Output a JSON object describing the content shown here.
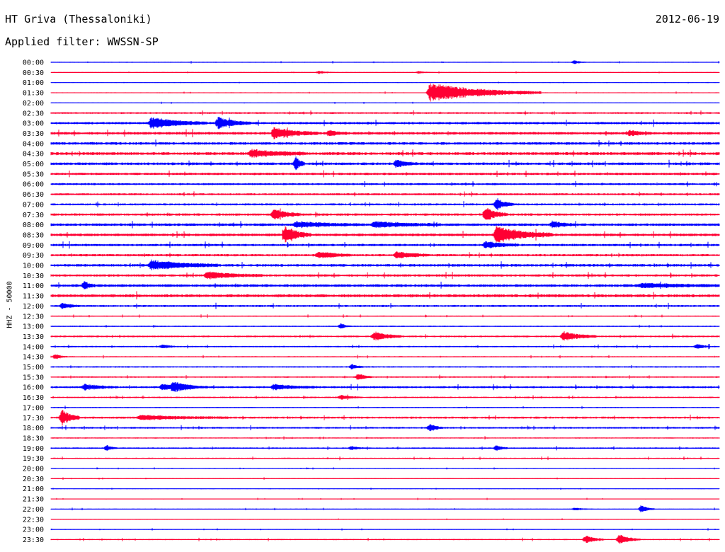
{
  "header": {
    "station": "HT Griva (Thessaloniki)",
    "date": "2012-06-19",
    "filter_label": "Applied filter:",
    "filter_value": "WWSSN-SP"
  },
  "channel_label": "HHZ - 50000",
  "colors": {
    "blue": "#0000ff",
    "red": "#ff0033",
    "text": "#000000",
    "background": "#ffffff"
  },
  "chart_data": {
    "type": "line",
    "title": "",
    "row_labels": [
      "00:00",
      "00:30",
      "01:00",
      "01:30",
      "02:00",
      "02:30",
      "03:00",
      "03:30",
      "04:00",
      "04:30",
      "05:00",
      "05:30",
      "06:00",
      "06:30",
      "07:00",
      "07:30",
      "08:00",
      "08:30",
      "09:00",
      "09:30",
      "10:00",
      "10:30",
      "11:00",
      "11:30",
      "12:00",
      "12:30",
      "13:00",
      "13:30",
      "14:00",
      "14:30",
      "15:00",
      "15:30",
      "16:00",
      "16:30",
      "17:00",
      "17:30",
      "18:00",
      "18:30",
      "19:00",
      "19:30",
      "20:00",
      "20:30",
      "21:00",
      "21:30",
      "22:00",
      "22:30",
      "23:00",
      "23:30"
    ],
    "row_colors": [
      "blue",
      "red"
    ],
    "row_minutes": 30,
    "baseline_noise": [
      0.6,
      0.5,
      0.4,
      0.6,
      0.5,
      1.2,
      1.6,
      1.8,
      1.8,
      2.0,
      1.8,
      1.6,
      1.4,
      1.4,
      1.4,
      1.6,
      1.8,
      1.8,
      1.6,
      1.6,
      1.8,
      1.6,
      1.8,
      2.0,
      1.4,
      0.8,
      0.8,
      1.2,
      1.0,
      0.8,
      1.0,
      1.0,
      1.4,
      1.0,
      0.8,
      1.4,
      1.2,
      0.8,
      1.0,
      0.8,
      0.6,
      0.6,
      0.5,
      0.5,
      0.6,
      0.5,
      0.6,
      0.8
    ],
    "events": [
      {
        "row": 0,
        "minute": 23.5,
        "amp": 3,
        "dur": 0.5
      },
      {
        "row": 1,
        "minute": 12.0,
        "amp": 2,
        "dur": 0.8
      },
      {
        "row": 1,
        "minute": 16.5,
        "amp": 2,
        "dur": 0.6
      },
      {
        "row": 3,
        "minute": 17.0,
        "amp": 14,
        "dur": 5.0
      },
      {
        "row": 6,
        "minute": 4.5,
        "amp": 8,
        "dur": 2.5
      },
      {
        "row": 6,
        "minute": 7.5,
        "amp": 8,
        "dur": 1.5
      },
      {
        "row": 7,
        "minute": 10.0,
        "amp": 8,
        "dur": 2.0
      },
      {
        "row": 7,
        "minute": 12.5,
        "amp": 4,
        "dur": 0.8
      },
      {
        "row": 7,
        "minute": 26.0,
        "amp": 4,
        "dur": 0.8
      },
      {
        "row": 9,
        "minute": 9.0,
        "amp": 5,
        "dur": 2.5
      },
      {
        "row": 10,
        "minute": 11.0,
        "amp": 10,
        "dur": 0.4
      },
      {
        "row": 10,
        "minute": 15.5,
        "amp": 5,
        "dur": 1.0
      },
      {
        "row": 14,
        "minute": 20.0,
        "amp": 8,
        "dur": 0.8
      },
      {
        "row": 15,
        "minute": 10.0,
        "amp": 8,
        "dur": 1.2
      },
      {
        "row": 15,
        "minute": 19.5,
        "amp": 10,
        "dur": 1.0
      },
      {
        "row": 16,
        "minute": 11.0,
        "amp": 4,
        "dur": 3.0
      },
      {
        "row": 16,
        "minute": 14.5,
        "amp": 4,
        "dur": 3.0
      },
      {
        "row": 16,
        "minute": 22.5,
        "amp": 5,
        "dur": 1.0
      },
      {
        "row": 17,
        "minute": 10.5,
        "amp": 12,
        "dur": 1.2
      },
      {
        "row": 17,
        "minute": 20.0,
        "amp": 12,
        "dur": 2.5
      },
      {
        "row": 18,
        "minute": 19.5,
        "amp": 5,
        "dur": 1.5
      },
      {
        "row": 19,
        "minute": 12.0,
        "amp": 5,
        "dur": 1.5
      },
      {
        "row": 19,
        "minute": 15.5,
        "amp": 5,
        "dur": 1.5
      },
      {
        "row": 20,
        "minute": 4.5,
        "amp": 7,
        "dur": 3.0
      },
      {
        "row": 21,
        "minute": 7.0,
        "amp": 5,
        "dur": 2.5
      },
      {
        "row": 22,
        "minute": 1.5,
        "amp": 6,
        "dur": 0.5
      },
      {
        "row": 22,
        "minute": 26.5,
        "amp": 3,
        "dur": 4.0
      },
      {
        "row": 24,
        "minute": 0.5,
        "amp": 4,
        "dur": 0.8
      },
      {
        "row": 26,
        "minute": 13.0,
        "amp": 4,
        "dur": 0.5
      },
      {
        "row": 27,
        "minute": 14.5,
        "amp": 7,
        "dur": 1.2
      },
      {
        "row": 27,
        "minute": 23.0,
        "amp": 7,
        "dur": 1.5
      },
      {
        "row": 28,
        "minute": 5.0,
        "amp": 3,
        "dur": 0.6
      },
      {
        "row": 28,
        "minute": 29.0,
        "amp": 4,
        "dur": 0.6
      },
      {
        "row": 29,
        "minute": 0.2,
        "amp": 4,
        "dur": 0.5
      },
      {
        "row": 30,
        "minute": 13.5,
        "amp": 4,
        "dur": 0.5
      },
      {
        "row": 31,
        "minute": 13.8,
        "amp": 5,
        "dur": 0.6
      },
      {
        "row": 32,
        "minute": 1.5,
        "amp": 4,
        "dur": 1.5
      },
      {
        "row": 32,
        "minute": 5.0,
        "amp": 4,
        "dur": 1.5
      },
      {
        "row": 32,
        "minute": 5.5,
        "amp": 6,
        "dur": 1.5
      },
      {
        "row": 32,
        "minute": 10.0,
        "amp": 4,
        "dur": 2.0
      },
      {
        "row": 33,
        "minute": 13.0,
        "amp": 3,
        "dur": 1.0
      },
      {
        "row": 35,
        "minute": 0.5,
        "amp": 12,
        "dur": 0.8
      },
      {
        "row": 35,
        "minute": 4.0,
        "amp": 3,
        "dur": 4.0
      },
      {
        "row": 36,
        "minute": 17.0,
        "amp": 5,
        "dur": 0.6
      },
      {
        "row": 38,
        "minute": 2.5,
        "amp": 4,
        "dur": 0.5
      },
      {
        "row": 38,
        "minute": 13.5,
        "amp": 3,
        "dur": 0.5
      },
      {
        "row": 38,
        "minute": 20.0,
        "amp": 4,
        "dur": 0.5
      },
      {
        "row": 44,
        "minute": 23.5,
        "amp": 2,
        "dur": 0.8
      },
      {
        "row": 44,
        "minute": 26.5,
        "amp": 6,
        "dur": 0.6
      },
      {
        "row": 47,
        "minute": 24.0,
        "amp": 6,
        "dur": 0.8
      },
      {
        "row": 47,
        "minute": 25.5,
        "amp": 7,
        "dur": 1.0
      }
    ]
  }
}
